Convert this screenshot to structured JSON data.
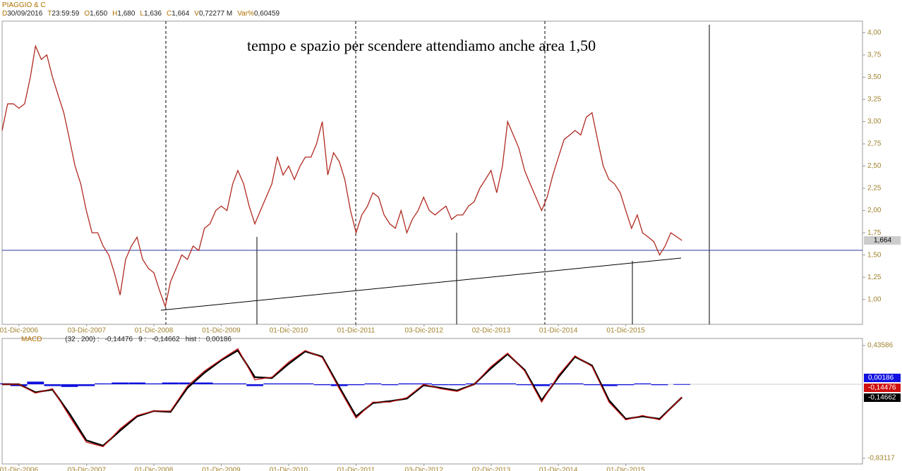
{
  "chart_data": [
    {
      "type": "line",
      "title": "PIAGGIO & C",
      "info": [
        {
          "label": "D",
          "value": "30/09/2016"
        },
        {
          "label": "T",
          "value": "23:59:59"
        },
        {
          "label": "O",
          "value": "1,650"
        },
        {
          "label": "H",
          "value": "1,680"
        },
        {
          "label": "L",
          "value": "1,636"
        },
        {
          "label": "C",
          "value": "1,664"
        },
        {
          "label": "V",
          "value": "0,72277 M"
        },
        {
          "label": "Var%",
          "value": "0,60459"
        }
      ],
      "annotation": "tempo e spazio per scendere attendiamo anche area 1,50",
      "color": "#b02a20",
      "x": [
        "2006-09-01",
        "2006-10-01",
        "2006-11-01",
        "2006-12-01",
        "2007-01-01",
        "2007-02-01",
        "2007-03-01",
        "2007-04-01",
        "2007-05-01",
        "2007-06-01",
        "2007-07-01",
        "2007-08-01",
        "2007-09-01",
        "2007-10-01",
        "2007-11-01",
        "2007-12-01",
        "2008-01-01",
        "2008-02-01",
        "2008-03-01",
        "2008-04-01",
        "2008-05-01",
        "2008-06-01",
        "2008-07-01",
        "2008-08-01",
        "2008-09-01",
        "2008-10-01",
        "2008-11-01",
        "2008-12-01",
        "2009-01-01",
        "2009-02-01",
        "2009-03-01",
        "2009-04-01",
        "2009-05-01",
        "2009-06-01",
        "2009-07-01",
        "2009-08-01",
        "2009-09-01",
        "2009-10-01",
        "2009-11-01",
        "2009-12-01",
        "2010-01-01",
        "2010-02-01",
        "2010-03-01",
        "2010-04-01",
        "2010-05-01",
        "2010-06-01",
        "2010-07-01",
        "2010-08-01",
        "2010-09-01",
        "2010-10-01",
        "2010-11-01",
        "2010-12-01",
        "2011-01-01",
        "2011-02-01",
        "2011-03-01",
        "2011-04-01",
        "2011-05-01",
        "2011-06-01",
        "2011-07-01",
        "2011-08-01",
        "2011-09-01",
        "2011-10-01",
        "2011-11-01",
        "2011-12-01",
        "2012-01-01",
        "2012-02-01",
        "2012-03-01",
        "2012-04-01",
        "2012-05-01",
        "2012-06-01",
        "2012-07-01",
        "2012-08-01",
        "2012-09-01",
        "2012-10-01",
        "2012-11-01",
        "2012-12-01",
        "2013-01-01",
        "2013-02-01",
        "2013-03-01",
        "2013-04-01",
        "2013-05-01",
        "2013-06-01",
        "2013-07-01",
        "2013-08-01",
        "2013-09-01",
        "2013-10-01",
        "2013-11-01",
        "2013-12-01",
        "2014-01-01",
        "2014-02-01",
        "2014-03-01",
        "2014-04-01",
        "2014-05-01",
        "2014-06-01",
        "2014-07-01",
        "2014-08-01",
        "2014-09-01",
        "2014-10-01",
        "2014-11-01",
        "2014-12-01",
        "2015-01-01",
        "2015-02-01",
        "2015-03-01",
        "2015-04-01",
        "2015-05-01",
        "2015-06-01",
        "2015-07-01",
        "2015-08-01",
        "2015-09-01",
        "2015-10-01",
        "2015-11-01",
        "2015-12-01",
        "2016-01-01",
        "2016-02-01",
        "2016-03-01",
        "2016-04-01",
        "2016-05-01",
        "2016-06-01",
        "2016-07-01",
        "2016-08-01",
        "2016-09-30"
      ],
      "values": [
        2.9,
        3.2,
        3.2,
        3.15,
        3.2,
        3.5,
        3.85,
        3.7,
        3.75,
        3.5,
        3.3,
        3.1,
        2.8,
        2.5,
        2.3,
        2.0,
        1.75,
        1.75,
        1.6,
        1.5,
        1.3,
        1.05,
        1.45,
        1.6,
        1.7,
        1.45,
        1.35,
        1.3,
        1.1,
        0.92,
        1.2,
        1.35,
        1.5,
        1.45,
        1.6,
        1.55,
        1.8,
        1.85,
        2.0,
        2.05,
        2.0,
        2.3,
        2.45,
        2.3,
        2.05,
        1.85,
        2.0,
        2.15,
        2.3,
        2.6,
        2.4,
        2.5,
        2.35,
        2.5,
        2.6,
        2.6,
        2.75,
        3.0,
        2.4,
        2.65,
        2.55,
        2.35,
        2.0,
        1.75,
        1.95,
        2.05,
        2.2,
        2.15,
        1.95,
        1.85,
        1.8,
        2.0,
        1.75,
        1.9,
        2.0,
        2.15,
        2.0,
        1.95,
        2.0,
        2.05,
        1.9,
        1.95,
        1.95,
        2.05,
        2.1,
        2.25,
        2.35,
        2.45,
        2.2,
        2.5,
        3.0,
        2.85,
        2.7,
        2.45,
        2.3,
        2.15,
        2.0,
        2.15,
        2.4,
        2.6,
        2.8,
        2.85,
        2.9,
        2.85,
        3.05,
        3.1,
        2.8,
        2.5,
        2.35,
        2.3,
        2.2,
        2.0,
        1.8,
        1.95,
        1.75,
        1.7,
        1.65,
        1.5,
        1.6,
        1.75,
        1.664
      ],
      "xlim": [
        "2006-09-01",
        "2019-06-05"
      ],
      "xticks": [
        {
          "value": "2006-12-01",
          "label": "01-Dic-2006"
        },
        {
          "value": "2007-12-03",
          "label": "03-Dic-2007"
        },
        {
          "value": "2008-12-01",
          "label": "01-Dic-2008"
        },
        {
          "value": "2009-12-01",
          "label": "01-Dic-2009"
        },
        {
          "value": "2010-12-01",
          "label": "01-Dic-2010"
        },
        {
          "value": "2011-12-01",
          "label": "01-Dic-2011"
        },
        {
          "value": "2012-12-03",
          "label": "03-Dic-2012"
        },
        {
          "value": "2013-12-02",
          "label": "02-Dic-2013"
        },
        {
          "value": "2014-12-01",
          "label": "01-Dic-2014"
        },
        {
          "value": "2015-12-01",
          "label": "01-Dic-2015"
        }
      ],
      "ylim": [
        0.72,
        4.13
      ],
      "yticks": [
        {
          "value": 1,
          "label": "1,00"
        },
        {
          "value": 1.25,
          "label": "1,25"
        },
        {
          "value": 1.5,
          "label": "1,50"
        },
        {
          "value": 1.75,
          "label": "1,75"
        },
        {
          "value": 2,
          "label": "2,00"
        },
        {
          "value": 2.25,
          "label": "2,25"
        },
        {
          "value": 2.5,
          "label": "2,50"
        },
        {
          "value": 2.75,
          "label": "2,75"
        },
        {
          "value": 3,
          "label": "3,00"
        },
        {
          "value": 3.25,
          "label": "3,25"
        },
        {
          "value": 3.5,
          "label": "3,50"
        },
        {
          "value": 3.75,
          "label": "3,75"
        },
        {
          "value": 4,
          "label": "4,00"
        }
      ]
    },
    {
      "type": "line",
      "title": "MACD",
      "x": [
        "2006-09-01",
        "2006-12-01",
        "2007-03-01",
        "2007-06-01",
        "2007-09-01",
        "2007-12-01",
        "2008-03-01",
        "2008-06-01",
        "2008-09-01",
        "2008-12-01",
        "2009-03-01",
        "2009-06-01",
        "2009-09-01",
        "2009-12-01",
        "2010-03-01",
        "2010-06-01",
        "2010-09-01",
        "2010-12-01",
        "2011-03-01",
        "2011-06-01",
        "2011-09-01",
        "2011-12-01",
        "2012-03-01",
        "2012-06-01",
        "2012-09-01",
        "2012-12-01",
        "2013-03-01",
        "2013-06-01",
        "2013-09-01",
        "2013-12-01",
        "2014-03-01",
        "2014-06-01",
        "2014-09-01",
        "2014-12-01",
        "2015-03-01",
        "2015-06-01",
        "2015-09-01",
        "2015-12-01",
        "2016-03-01",
        "2016-06-01",
        "2016-09-30"
      ],
      "series": [
        {
          "name": "hist :",
          "label": "0,00186",
          "color": "#1010e0",
          "type": "bar",
          "values": [
            0.01,
            -0.02,
            0.03,
            -0.02,
            -0.03,
            -0.02,
            0.01,
            0.02,
            0.02,
            0.01,
            0.02,
            0.02,
            0.02,
            0.01,
            0.01,
            -0.02,
            0.01,
            0.01,
            0.01,
            -0.01,
            -0.02,
            -0.01,
            0.01,
            -0.01,
            0.01,
            0.01,
            -0.01,
            -0.01,
            0.01,
            0.01,
            0.01,
            -0.01,
            -0.02,
            0.01,
            0.01,
            -0.01,
            -0.02,
            -0.01,
            0.01,
            -0.01,
            0.00186
          ]
        },
        {
          "name": "9 :",
          "label": "-0,14662",
          "color": "#000000",
          "type": "line",
          "values": [
            0.0,
            0.0,
            -0.09,
            -0.06,
            -0.33,
            -0.63,
            -0.69,
            -0.52,
            -0.36,
            -0.3,
            -0.31,
            -0.04,
            0.13,
            0.27,
            0.38,
            0.08,
            0.07,
            0.23,
            0.37,
            0.31,
            -0.03,
            -0.36,
            -0.21,
            -0.19,
            -0.16,
            -0.01,
            -0.04,
            -0.07,
            0.0,
            0.18,
            0.34,
            0.16,
            -0.18,
            0.08,
            0.31,
            0.21,
            -0.18,
            -0.39,
            -0.36,
            -0.39,
            -0.14662
          ]
        },
        {
          "name": "(32 , 200) :",
          "label": "-0,14476",
          "color": "#d01010",
          "type": "line",
          "values": [
            0.0,
            0.0,
            -0.1,
            -0.05,
            -0.36,
            -0.65,
            -0.7,
            -0.5,
            -0.35,
            -0.3,
            -0.3,
            -0.02,
            0.15,
            0.28,
            0.4,
            0.05,
            0.08,
            0.25,
            0.38,
            0.3,
            -0.05,
            -0.38,
            -0.2,
            -0.2,
            -0.15,
            0.0,
            -0.05,
            -0.08,
            0.0,
            0.2,
            0.35,
            0.15,
            -0.2,
            0.1,
            0.32,
            0.2,
            -0.2,
            -0.4,
            -0.35,
            -0.4,
            -0.14476
          ]
        }
      ],
      "xlim": [
        "2006-09-01",
        "2019-06-05"
      ],
      "xticks": [
        {
          "value": "2006-12-01",
          "label": "01-Dic-2006"
        },
        {
          "value": "2007-12-03",
          "label": "03-Dic-2007"
        },
        {
          "value": "2008-12-01",
          "label": "01-Dic-2008"
        },
        {
          "value": "2009-12-01",
          "label": "01-Dic-2009"
        },
        {
          "value": "2010-12-01",
          "label": "01-Dic-2010"
        },
        {
          "value": "2011-12-01",
          "label": "01-Dic-2011"
        },
        {
          "value": "2012-12-03",
          "label": "03-Dic-2012"
        },
        {
          "value": "2013-12-02",
          "label": "02-Dic-2013"
        },
        {
          "value": "2014-12-01",
          "label": "01-Dic-2014"
        },
        {
          "value": "2015-12-01",
          "label": "01-Dic-2015"
        }
      ],
      "ylim": [
        -0.895,
        0.515
      ],
      "yticks": [
        {
          "value": -0.83117,
          "label": "-0,83117"
        },
        {
          "value": 0.43586,
          "label": "0,43586"
        }
      ]
    }
  ]
}
